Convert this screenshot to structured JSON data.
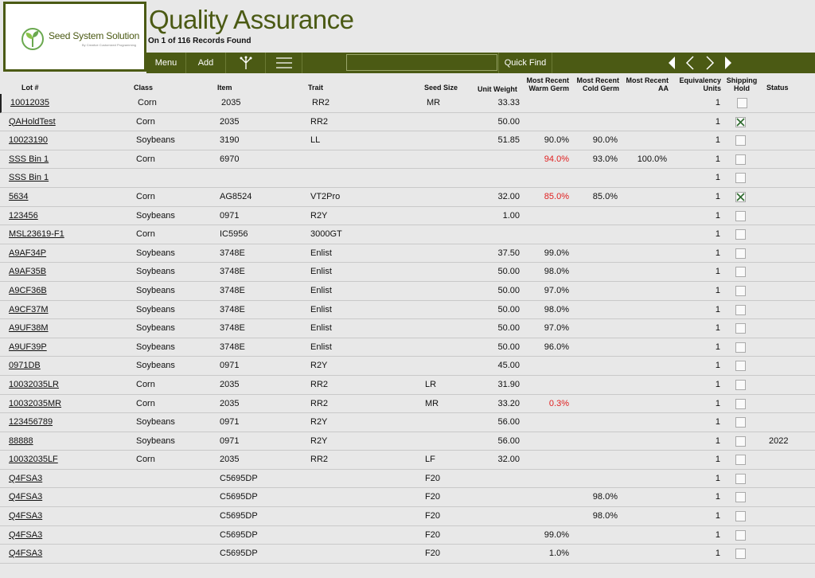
{
  "logo": {
    "name": "Seed System Solution",
    "tagline": "By Creative Customized Programming"
  },
  "page": {
    "title": "Quality Assurance",
    "records_text": "On  1  of  116  Records Found"
  },
  "toolbar": {
    "menu_label": "Menu",
    "add_label": "Add",
    "quick_find_value": "",
    "quick_find_label": "Quick Find"
  },
  "icons": {
    "split": "split-icon",
    "list": "list-icon",
    "first": "first-record-icon",
    "prev": "prev-record-icon",
    "next": "next-record-icon",
    "last": "last-record-icon"
  },
  "colors": {
    "brand": "#4b5a14",
    "alert": "#e02020"
  },
  "columns": {
    "lot": "Lot #",
    "class": "Class",
    "item": "Item",
    "trait": "Trait",
    "seed_size": "Seed Size",
    "unit_weight": "Unit Weight",
    "warm_germ_1": "Most Recent",
    "warm_germ_2": "Warm Germ",
    "cold_germ_1": "Most Recent",
    "cold_germ_2": "Cold Germ",
    "aa_1": "Most Recent",
    "aa_2": "AA",
    "eq_1": "Equivalency",
    "eq_2": "Units",
    "hold_1": "Shipping",
    "hold_2": "Hold",
    "status": "Status"
  },
  "rows": [
    {
      "lot": "10012035",
      "class": "Corn",
      "item": "2035",
      "trait": "RR2",
      "seed_size": "MR",
      "unit_weight": "33.33",
      "warm_germ": "",
      "warm_red": false,
      "cold_germ": "",
      "aa": "",
      "eq_units": "1",
      "hold": false,
      "status": ""
    },
    {
      "lot": "QAHoldTest",
      "class": "Corn",
      "item": "2035",
      "trait": "RR2",
      "seed_size": "",
      "unit_weight": "50.00",
      "warm_germ": "",
      "warm_red": false,
      "cold_germ": "",
      "aa": "",
      "eq_units": "1",
      "hold": true,
      "status": ""
    },
    {
      "lot": "10023190",
      "class": "Soybeans",
      "item": "3190",
      "trait": "LL",
      "seed_size": "",
      "unit_weight": "51.85",
      "warm_germ": "90.0%",
      "warm_red": false,
      "cold_germ": "90.0%",
      "aa": "",
      "eq_units": "1",
      "hold": false,
      "status": ""
    },
    {
      "lot": "SSS Bin 1",
      "class": "Corn",
      "item": "6970",
      "trait": "",
      "seed_size": "",
      "unit_weight": "",
      "warm_germ": "94.0%",
      "warm_red": true,
      "cold_germ": "93.0%",
      "aa": "100.0%",
      "eq_units": "1",
      "hold": false,
      "status": ""
    },
    {
      "lot": "SSS Bin 1",
      "class": "",
      "item": "",
      "trait": "",
      "seed_size": "",
      "unit_weight": "",
      "warm_germ": "",
      "warm_red": false,
      "cold_germ": "",
      "aa": "",
      "eq_units": "1",
      "hold": false,
      "status": ""
    },
    {
      "lot": "5634",
      "class": "Corn",
      "item": "AG8524",
      "trait": "VT2Pro",
      "seed_size": "",
      "unit_weight": "32.00",
      "warm_germ": "85.0%",
      "warm_red": true,
      "cold_germ": "85.0%",
      "aa": "",
      "eq_units": "1",
      "hold": true,
      "status": ""
    },
    {
      "lot": "123456",
      "class": "Soybeans",
      "item": "0971",
      "trait": "R2Y",
      "seed_size": "",
      "unit_weight": "1.00",
      "warm_germ": "",
      "warm_red": false,
      "cold_germ": "",
      "aa": "",
      "eq_units": "1",
      "hold": false,
      "status": ""
    },
    {
      "lot": "MSL23619-F1",
      "class": "Corn",
      "item": "IC5956",
      "trait": "3000GT",
      "seed_size": "",
      "unit_weight": "",
      "warm_germ": "",
      "warm_red": false,
      "cold_germ": "",
      "aa": "",
      "eq_units": "1",
      "hold": false,
      "status": ""
    },
    {
      "lot": "A9AF34P",
      "class": "Soybeans",
      "item": "3748E",
      "trait": "Enlist",
      "seed_size": "",
      "unit_weight": "37.50",
      "warm_germ": "99.0%",
      "warm_red": false,
      "cold_germ": "",
      "aa": "",
      "eq_units": "1",
      "hold": false,
      "status": ""
    },
    {
      "lot": "A9AF35B",
      "class": "Soybeans",
      "item": "3748E",
      "trait": "Enlist",
      "seed_size": "",
      "unit_weight": "50.00",
      "warm_germ": "98.0%",
      "warm_red": false,
      "cold_germ": "",
      "aa": "",
      "eq_units": "1",
      "hold": false,
      "status": ""
    },
    {
      "lot": "A9CF36B",
      "class": "Soybeans",
      "item": "3748E",
      "trait": "Enlist",
      "seed_size": "",
      "unit_weight": "50.00",
      "warm_germ": "97.0%",
      "warm_red": false,
      "cold_germ": "",
      "aa": "",
      "eq_units": "1",
      "hold": false,
      "status": ""
    },
    {
      "lot": "A9CF37M",
      "class": "Soybeans",
      "item": "3748E",
      "trait": "Enlist",
      "seed_size": "",
      "unit_weight": "50.00",
      "warm_germ": "98.0%",
      "warm_red": false,
      "cold_germ": "",
      "aa": "",
      "eq_units": "1",
      "hold": false,
      "status": ""
    },
    {
      "lot": "A9UF38M",
      "class": "Soybeans",
      "item": "3748E",
      "trait": "Enlist",
      "seed_size": "",
      "unit_weight": "50.00",
      "warm_germ": "97.0%",
      "warm_red": false,
      "cold_germ": "",
      "aa": "",
      "eq_units": "1",
      "hold": false,
      "status": ""
    },
    {
      "lot": "A9UF39P",
      "class": "Soybeans",
      "item": "3748E",
      "trait": "Enlist",
      "seed_size": "",
      "unit_weight": "50.00",
      "warm_germ": "96.0%",
      "warm_red": false,
      "cold_germ": "",
      "aa": "",
      "eq_units": "1",
      "hold": false,
      "status": ""
    },
    {
      "lot": "0971DB",
      "class": "Soybeans",
      "item": "0971",
      "trait": "R2Y",
      "seed_size": "",
      "unit_weight": "45.00",
      "warm_germ": "",
      "warm_red": false,
      "cold_germ": "",
      "aa": "",
      "eq_units": "1",
      "hold": false,
      "status": ""
    },
    {
      "lot": "10032035LR",
      "class": "Corn",
      "item": "2035",
      "trait": "RR2",
      "seed_size": "LR",
      "unit_weight": "31.90",
      "warm_germ": "",
      "warm_red": false,
      "cold_germ": "",
      "aa": "",
      "eq_units": "1",
      "hold": false,
      "status": ""
    },
    {
      "lot": "10032035MR",
      "class": "Corn",
      "item": "2035",
      "trait": "RR2",
      "seed_size": "MR",
      "unit_weight": "33.20",
      "warm_germ": "0.3%",
      "warm_red": true,
      "cold_germ": "",
      "aa": "",
      "eq_units": "1",
      "hold": false,
      "status": ""
    },
    {
      "lot": "123456789",
      "class": "Soybeans",
      "item": "0971",
      "trait": "R2Y",
      "seed_size": "",
      "unit_weight": "56.00",
      "warm_germ": "",
      "warm_red": false,
      "cold_germ": "",
      "aa": "",
      "eq_units": "1",
      "hold": false,
      "status": ""
    },
    {
      "lot": "88888",
      "class": "Soybeans",
      "item": "0971",
      "trait": "R2Y",
      "seed_size": "",
      "unit_weight": "56.00",
      "warm_germ": "",
      "warm_red": false,
      "cold_germ": "",
      "aa": "",
      "eq_units": "1",
      "hold": false,
      "status": "2022"
    },
    {
      "lot": "10032035LF",
      "class": "Corn",
      "item": "2035",
      "trait": "RR2",
      "seed_size": "LF",
      "unit_weight": "32.00",
      "warm_germ": "",
      "warm_red": false,
      "cold_germ": "",
      "aa": "",
      "eq_units": "1",
      "hold": false,
      "status": ""
    },
    {
      "lot": "Q4FSA3",
      "class": "",
      "item": "C5695DP",
      "trait": "",
      "seed_size": "F20",
      "unit_weight": "",
      "warm_germ": "",
      "warm_red": false,
      "cold_germ": "",
      "aa": "",
      "eq_units": "1",
      "hold": false,
      "status": ""
    },
    {
      "lot": "Q4FSA3",
      "class": "",
      "item": "C5695DP",
      "trait": "",
      "seed_size": "F20",
      "unit_weight": "",
      "warm_germ": "",
      "warm_red": false,
      "cold_germ": "98.0%",
      "aa": "",
      "eq_units": "1",
      "hold": false,
      "status": ""
    },
    {
      "lot": "Q4FSA3",
      "class": "",
      "item": "C5695DP",
      "trait": "",
      "seed_size": "F20",
      "unit_weight": "",
      "warm_germ": "",
      "warm_red": false,
      "cold_germ": "98.0%",
      "aa": "",
      "eq_units": "1",
      "hold": false,
      "status": ""
    },
    {
      "lot": "Q4FSA3",
      "class": "",
      "item": "C5695DP",
      "trait": "",
      "seed_size": "F20",
      "unit_weight": "",
      "warm_germ": "99.0%",
      "warm_red": false,
      "cold_germ": "",
      "aa": "",
      "eq_units": "1",
      "hold": false,
      "status": ""
    },
    {
      "lot": "Q4FSA3",
      "class": "",
      "item": "C5695DP",
      "trait": "",
      "seed_size": "F20",
      "unit_weight": "",
      "warm_germ": "1.0%",
      "warm_red": false,
      "cold_germ": "",
      "aa": "",
      "eq_units": "1",
      "hold": false,
      "status": ""
    }
  ]
}
